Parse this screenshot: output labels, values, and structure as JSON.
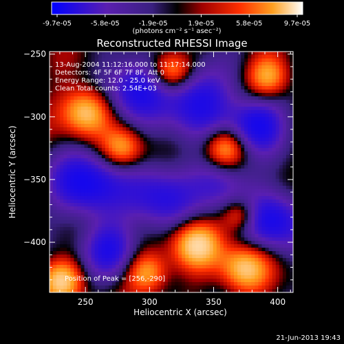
{
  "colorbar": {
    "tick_labels": [
      "-9.7e-05",
      "-5.8e-05",
      "-1.9e-05",
      "1.9e-05",
      "5.8e-05",
      "9.7e-05"
    ],
    "unit_label": "(photons cm⁻² s⁻¹ asec⁻²)",
    "range": [
      -9.7e-05,
      9.7e-05
    ]
  },
  "chart_data": {
    "type": "heatmap",
    "title": "Reconstructed RHESSI Image",
    "xlabel": "Heliocentric X (arcsec)",
    "ylabel": "Heliocentric Y (arcsec)",
    "xlim": [
      222,
      412
    ],
    "ylim": [
      -440,
      -248
    ],
    "x_ticks": [
      250,
      300,
      350,
      400
    ],
    "y_ticks": [
      -250,
      -300,
      -350,
      -400
    ],
    "annotations": [
      "13-Aug-2004 11:12:16.000 to 11:17:14.000",
      "Detectors: 4F 5F 6F 7F 8F, Att 0",
      "Energy Range: 12.0 - 25.0 keV",
      "Clean    Total counts: 2.54E+03"
    ],
    "peak_label": "Position of Peak = [256,-290]",
    "peak": [
      256,
      -290
    ],
    "colormap": "blue-purple-black-red-orange-yellow-white"
  },
  "timestamp": "21-Jun-2013 19:43"
}
